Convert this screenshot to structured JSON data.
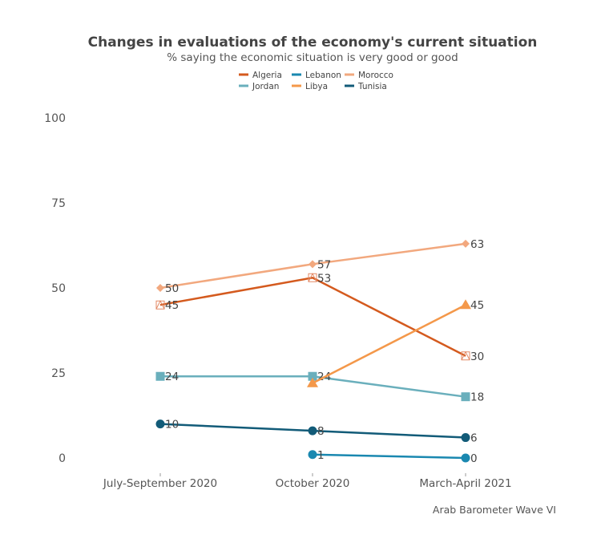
{
  "chart_data": {
    "type": "line",
    "title": "Changes in evaluations of the economy's current situation",
    "subtitle": "% saying the economic situation is very good or good",
    "caption": "Arab Barometer Wave VI",
    "categories": [
      "July-September 2020",
      "October 2020",
      "March-April 2021"
    ],
    "ylim": [
      0,
      100
    ],
    "yticks": [
      0,
      25,
      50,
      75,
      100
    ],
    "grid": false,
    "legend_position": "top",
    "series": [
      {
        "name": "Algeria",
        "color": "#d45a1e",
        "marker": "square-x",
        "values": [
          45,
          53,
          30
        ],
        "labels": [
          true,
          true,
          true
        ]
      },
      {
        "name": "Jordan",
        "color": "#6aafbc",
        "marker": "square",
        "values": [
          24,
          24,
          18
        ],
        "labels": [
          true,
          true,
          true
        ]
      },
      {
        "name": "Lebanon",
        "color": "#1a88b0",
        "marker": "circle",
        "values": [
          null,
          1,
          0
        ],
        "labels": [
          false,
          true,
          true
        ]
      },
      {
        "name": "Libya",
        "color": "#f4984a",
        "marker": "triangle",
        "values": [
          null,
          22,
          45
        ],
        "labels": [
          false,
          false,
          true
        ]
      },
      {
        "name": "Morocco",
        "color": "#f2a87e",
        "marker": "diamond",
        "values": [
          50,
          57,
          63
        ],
        "labels": [
          true,
          true,
          true
        ]
      },
      {
        "name": "Tunisia",
        "color": "#125b78",
        "marker": "circle",
        "values": [
          10,
          8,
          6
        ],
        "labels": [
          true,
          true,
          true
        ]
      }
    ]
  }
}
